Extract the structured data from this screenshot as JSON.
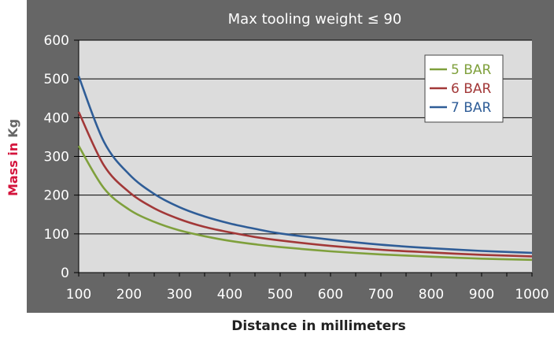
{
  "chart_data": {
    "type": "line",
    "title": "Max tooling weight  ≤ 90",
    "xlabel": "Distance in millimeters",
    "ylabel_part1": "Mass in",
    "ylabel_part2": "Kg",
    "xlim": [
      100,
      1000
    ],
    "ylim": [
      0,
      600
    ],
    "x_ticks": [
      100,
      200,
      300,
      400,
      500,
      600,
      700,
      800,
      900,
      1000
    ],
    "y_ticks": [
      0,
      100,
      200,
      300,
      400,
      500,
      600
    ],
    "grid": true,
    "legend_position": "top-right",
    "x": [
      100,
      150,
      200,
      250,
      300,
      350,
      400,
      450,
      500,
      600,
      700,
      800,
      900,
      1000
    ],
    "series": [
      {
        "name": "5 BAR",
        "color": "#7fa03c",
        "values": [
          327,
          218,
          163,
          131,
          109,
          94,
          82,
          73,
          66,
          55,
          47,
          41,
          36,
          33
        ]
      },
      {
        "name": "6 BAR",
        "color": "#a23838",
        "values": [
          415,
          277,
          208,
          166,
          138,
          118,
          104,
          92,
          83,
          69,
          59,
          52,
          46,
          42
        ]
      },
      {
        "name": "7 BAR",
        "color": "#2f5d97",
        "values": [
          507,
          338,
          254,
          203,
          169,
          145,
          127,
          113,
          101,
          85,
          72,
          63,
          56,
          51
        ]
      }
    ]
  },
  "colors": {
    "frame": "#666666",
    "plot_bg": "#dcdcdc",
    "grid": "#000000",
    "ylabel_color": "#d4143c"
  }
}
